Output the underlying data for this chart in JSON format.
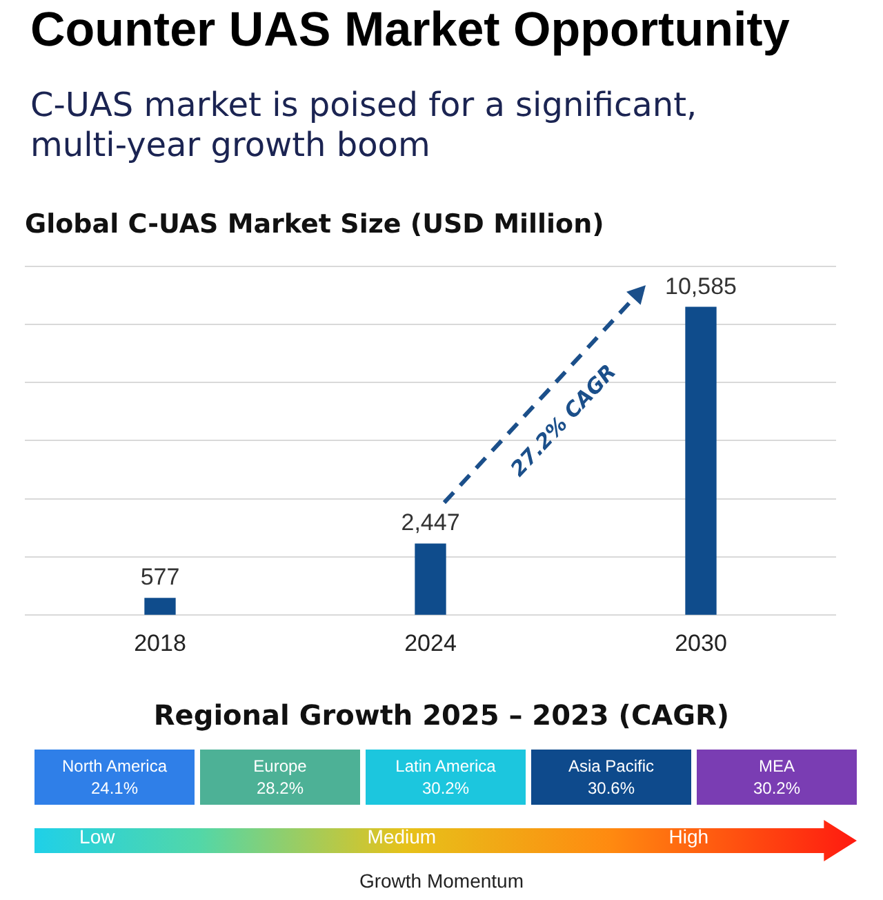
{
  "chart_data": [
    {
      "type": "other",
      "title": "Counter UAS Market Opportunity",
      "subtitle": "C-UAS market is poised for a significant, multi-year growth boom"
    },
    {
      "type": "bar",
      "title": "Global C-UAS Market Size (USD Million)",
      "categories": [
        "2018",
        "2024",
        "2030"
      ],
      "values": [
        577,
        2447,
        10585
      ],
      "value_labels": [
        "577",
        "2,447",
        "10,585"
      ],
      "color": "#0f4c8c",
      "ylim": [
        0,
        12000
      ],
      "yticks": [
        {
          "value": 0,
          "label": null
        },
        {
          "value": 2000,
          "label": null
        },
        {
          "value": 4000,
          "label": null
        },
        {
          "value": 6000,
          "label": null
        },
        {
          "value": 8000,
          "label": null
        },
        {
          "value": 10000,
          "label": null
        },
        {
          "value": 12000,
          "label": null
        }
      ],
      "grid": "y",
      "tick_labels": "x",
      "legend": false,
      "annotations": [
        "27.2% CAGR"
      ]
    },
    {
      "type": "other",
      "title": "Regional Growth 2025 – 2023 (CAGR)",
      "categories": [
        "North America",
        "Europe",
        "Latin America",
        "Asia Pacific",
        "MEA"
      ],
      "value_labels": [
        "24.1%",
        "28.2%",
        "30.2%",
        "30.6%",
        "30.2%"
      ],
      "colors": [
        "#2f7fe8",
        "#4db196",
        "#1cc6de",
        "#0e4a8c",
        "#7a3db3"
      ],
      "annotations": [
        "Low",
        "Medium",
        "High",
        "Growth Momentum"
      ]
    }
  ]
}
